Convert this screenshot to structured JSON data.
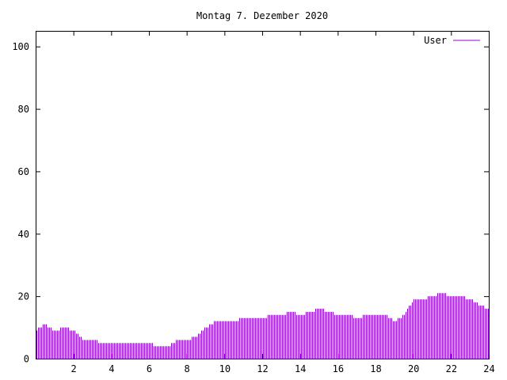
{
  "chart_data": {
    "type": "bar",
    "title": "Montag 7. Dezember 2020",
    "xlabel": "",
    "ylabel": "",
    "xlim": [
      0,
      24
    ],
    "ylim": [
      0,
      105
    ],
    "x_ticks": [
      "2",
      "4",
      "6",
      "8",
      "10",
      "12",
      "14",
      "16",
      "18",
      "20",
      "22",
      "24"
    ],
    "y_ticks": [
      "0",
      "20",
      "40",
      "60",
      "80",
      "100"
    ],
    "grid": false,
    "legend_position": "top-right",
    "series": [
      {
        "name": "User",
        "color": "#9400d3",
        "x": [
          0.0,
          0.5,
          1.0,
          1.5,
          2.0,
          2.5,
          3.0,
          3.5,
          4.0,
          4.5,
          5.0,
          5.5,
          6.0,
          6.5,
          7.0,
          7.5,
          8.0,
          8.5,
          9.0,
          9.5,
          10.0,
          10.5,
          11.0,
          11.5,
          12.0,
          12.5,
          13.0,
          13.5,
          14.0,
          14.5,
          15.0,
          15.5,
          16.0,
          16.5,
          17.0,
          17.5,
          18.0,
          18.5,
          19.0,
          19.5,
          20.0,
          20.5,
          21.0,
          21.5,
          22.0,
          22.5,
          23.0,
          23.5,
          24.0
        ],
        "values": [
          9,
          11,
          9,
          10,
          9,
          6,
          6,
          5,
          5,
          5,
          5,
          5,
          5,
          4,
          4,
          6,
          6,
          7,
          10,
          12,
          12,
          12,
          13,
          13,
          13,
          14,
          14,
          15,
          14,
          15,
          16,
          15,
          14,
          14,
          13,
          14,
          14,
          14,
          12,
          14,
          19,
          19,
          20,
          21,
          20,
          20,
          19,
          17,
          16
        ]
      }
    ]
  }
}
